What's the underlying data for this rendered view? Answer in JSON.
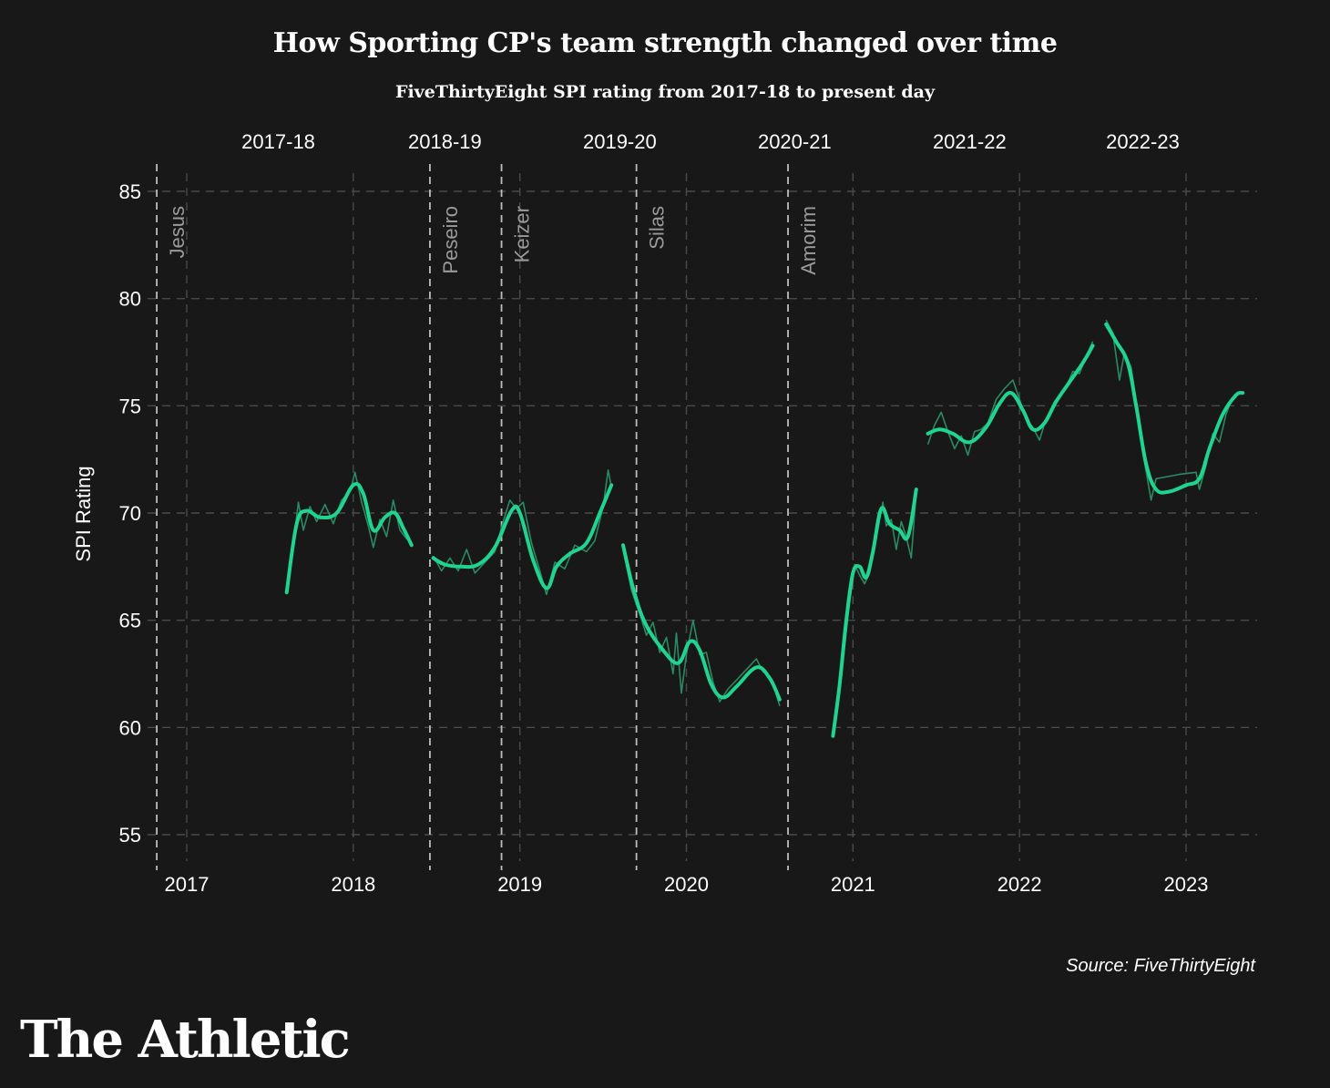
{
  "header": {
    "title": "How Sporting CP's team strength changed over time",
    "subtitle": "FiveThirtyEight SPI rating from 2017-18 to present day"
  },
  "footer": {
    "source": "Source: FiveThirtyEight",
    "logo": "The Athletic"
  },
  "colors": {
    "background": "#181818",
    "line": "#1ed490",
    "raw_line": "#2a8a63",
    "grid": "#4a4a4a",
    "manager_line": "#bdbdbd",
    "manager_label": "#9a9a9a"
  },
  "chart_data": {
    "type": "line",
    "title": "How Sporting CP's team strength changed over time",
    "subtitle": "FiveThirtyEight SPI rating from 2017-18 to present day",
    "xlabel": "",
    "ylabel": "SPI Rating",
    "ylim": [
      54,
      86
    ],
    "xlim": [
      2016.8,
      2023.45
    ],
    "y_ticks": [
      55,
      60,
      65,
      70,
      75,
      80,
      85
    ],
    "x_ticks": [
      {
        "value": 2017.0,
        "label": "2017"
      },
      {
        "value": 2018.0,
        "label": "2018"
      },
      {
        "value": 2019.0,
        "label": "2019"
      },
      {
        "value": 2020.0,
        "label": "2020"
      },
      {
        "value": 2021.0,
        "label": "2021"
      },
      {
        "value": 2022.0,
        "label": "2022"
      },
      {
        "value": 2023.0,
        "label": "2023"
      }
    ],
    "seasons": [
      {
        "label": "2017-18",
        "x": 2017.55
      },
      {
        "label": "2018-19",
        "x": 2018.55
      },
      {
        "label": "2019-20",
        "x": 2019.6
      },
      {
        "label": "2020-21",
        "x": 2020.65
      },
      {
        "label": "2021-22",
        "x": 2021.7
      },
      {
        "label": "2022-23",
        "x": 2022.74
      }
    ],
    "managers": [
      {
        "name": "Jesus",
        "x": 2016.82
      },
      {
        "name": "Peseiro",
        "x": 2018.46
      },
      {
        "name": "Keizer",
        "x": 2018.89
      },
      {
        "name": "Silas",
        "x": 2019.7
      },
      {
        "name": "Amorim",
        "x": 2020.61
      }
    ],
    "grid": true,
    "series": [
      {
        "season": "2017-18",
        "smoothed": [
          [
            2017.6,
            66.3
          ],
          [
            2017.66,
            69.5
          ],
          [
            2017.72,
            70.1
          ],
          [
            2017.8,
            69.8
          ],
          [
            2017.9,
            70.0
          ],
          [
            2018.0,
            71.3
          ],
          [
            2018.06,
            70.9
          ],
          [
            2018.12,
            69.2
          ],
          [
            2018.19,
            69.8
          ],
          [
            2018.25,
            70.0
          ],
          [
            2018.3,
            69.3
          ],
          [
            2018.35,
            68.5
          ]
        ],
        "raw": [
          [
            2017.6,
            66.5
          ],
          [
            2017.64,
            68.5
          ],
          [
            2017.67,
            70.5
          ],
          [
            2017.7,
            69.2
          ],
          [
            2017.74,
            70.3
          ],
          [
            2017.78,
            69.6
          ],
          [
            2017.83,
            70.4
          ],
          [
            2017.88,
            69.5
          ],
          [
            2017.93,
            70.6
          ],
          [
            2017.98,
            71.0
          ],
          [
            2018.01,
            71.9
          ],
          [
            2018.05,
            70.5
          ],
          [
            2018.09,
            69.4
          ],
          [
            2018.12,
            68.4
          ],
          [
            2018.16,
            69.7
          ],
          [
            2018.2,
            68.9
          ],
          [
            2018.24,
            70.6
          ],
          [
            2018.28,
            69.2
          ],
          [
            2018.32,
            68.8
          ],
          [
            2018.35,
            68.6
          ]
        ]
      },
      {
        "season": "2018-19",
        "smoothed": [
          [
            2018.48,
            67.9
          ],
          [
            2018.55,
            67.6
          ],
          [
            2018.65,
            67.5
          ],
          [
            2018.75,
            67.6
          ],
          [
            2018.85,
            68.4
          ],
          [
            2018.95,
            70.1
          ],
          [
            2019.0,
            70.0
          ],
          [
            2019.08,
            67.8
          ],
          [
            2019.16,
            66.5
          ],
          [
            2019.22,
            67.5
          ],
          [
            2019.3,
            68.1
          ],
          [
            2019.4,
            68.6
          ],
          [
            2019.48,
            70.0
          ],
          [
            2019.55,
            71.3
          ]
        ],
        "raw": [
          [
            2018.48,
            68.0
          ],
          [
            2018.53,
            67.3
          ],
          [
            2018.58,
            67.9
          ],
          [
            2018.63,
            67.3
          ],
          [
            2018.68,
            68.3
          ],
          [
            2018.73,
            67.2
          ],
          [
            2018.79,
            67.7
          ],
          [
            2018.85,
            68.2
          ],
          [
            2018.9,
            69.6
          ],
          [
            2018.94,
            70.6
          ],
          [
            2018.98,
            70.2
          ],
          [
            2019.02,
            70.5
          ],
          [
            2019.07,
            68.6
          ],
          [
            2019.12,
            67.3
          ],
          [
            2019.16,
            66.2
          ],
          [
            2019.21,
            67.7
          ],
          [
            2019.27,
            67.4
          ],
          [
            2019.33,
            68.5
          ],
          [
            2019.4,
            68.2
          ],
          [
            2019.45,
            68.7
          ],
          [
            2019.5,
            70.3
          ],
          [
            2019.53,
            72.0
          ],
          [
            2019.55,
            71.2
          ]
        ]
      },
      {
        "season": "2019-20",
        "smoothed": [
          [
            2019.62,
            68.5
          ],
          [
            2019.68,
            66.5
          ],
          [
            2019.75,
            64.9
          ],
          [
            2019.85,
            63.7
          ],
          [
            2019.95,
            63.0
          ],
          [
            2020.02,
            64.0
          ],
          [
            2020.08,
            63.6
          ],
          [
            2020.15,
            62.0
          ],
          [
            2020.22,
            61.4
          ],
          [
            2020.3,
            61.9
          ],
          [
            2020.42,
            62.8
          ],
          [
            2020.5,
            62.3
          ],
          [
            2020.56,
            61.3
          ]
        ],
        "raw": [
          [
            2019.62,
            68.3
          ],
          [
            2019.67,
            66.4
          ],
          [
            2019.72,
            65.3
          ],
          [
            2019.76,
            64.3
          ],
          [
            2019.8,
            64.9
          ],
          [
            2019.84,
            63.5
          ],
          [
            2019.88,
            64.2
          ],
          [
            2019.92,
            62.5
          ],
          [
            2019.94,
            64.4
          ],
          [
            2019.97,
            61.6
          ],
          [
            2020.0,
            63.4
          ],
          [
            2020.04,
            65.0
          ],
          [
            2020.08,
            63.4
          ],
          [
            2020.12,
            63.5
          ],
          [
            2020.16,
            62.1
          ],
          [
            2020.2,
            61.2
          ],
          [
            2020.25,
            61.8
          ],
          [
            2020.3,
            62.2
          ],
          [
            2020.42,
            63.2
          ],
          [
            2020.46,
            62.6
          ],
          [
            2020.5,
            62.4
          ],
          [
            2020.53,
            61.8
          ],
          [
            2020.56,
            61.0
          ]
        ]
      },
      {
        "season": "2020-21",
        "smoothed": [
          [
            2020.88,
            59.6
          ],
          [
            2020.92,
            62.0
          ],
          [
            2020.96,
            65.0
          ],
          [
            2021.0,
            67.2
          ],
          [
            2021.04,
            67.5
          ],
          [
            2021.08,
            67.0
          ],
          [
            2021.12,
            68.2
          ],
          [
            2021.17,
            70.2
          ],
          [
            2021.22,
            69.5
          ],
          [
            2021.28,
            69.2
          ],
          [
            2021.33,
            68.9
          ],
          [
            2021.38,
            71.1
          ]
        ],
        "raw": [
          [
            2020.88,
            59.8
          ],
          [
            2020.93,
            62.3
          ],
          [
            2020.97,
            65.2
          ],
          [
            2021.01,
            67.6
          ],
          [
            2021.04,
            67.1
          ],
          [
            2021.07,
            66.7
          ],
          [
            2021.1,
            67.2
          ],
          [
            2021.13,
            68.4
          ],
          [
            2021.16,
            69.7
          ],
          [
            2021.18,
            70.5
          ],
          [
            2021.2,
            69.4
          ],
          [
            2021.23,
            69.7
          ],
          [
            2021.26,
            68.3
          ],
          [
            2021.29,
            69.6
          ],
          [
            2021.32,
            68.9
          ],
          [
            2021.35,
            67.9
          ],
          [
            2021.38,
            71.0
          ]
        ]
      },
      {
        "season": "2021-22",
        "smoothed": [
          [
            2021.45,
            73.7
          ],
          [
            2021.52,
            73.9
          ],
          [
            2021.6,
            73.7
          ],
          [
            2021.7,
            73.3
          ],
          [
            2021.8,
            74.0
          ],
          [
            2021.88,
            75.1
          ],
          [
            2021.95,
            75.6
          ],
          [
            2022.02,
            74.8
          ],
          [
            2022.08,
            73.9
          ],
          [
            2022.15,
            74.2
          ],
          [
            2022.22,
            75.2
          ],
          [
            2022.3,
            76.1
          ],
          [
            2022.38,
            77.0
          ],
          [
            2022.44,
            77.8
          ]
        ],
        "raw": [
          [
            2021.45,
            73.2
          ],
          [
            2021.49,
            74.1
          ],
          [
            2021.53,
            74.7
          ],
          [
            2021.57,
            73.8
          ],
          [
            2021.61,
            73.0
          ],
          [
            2021.65,
            73.6
          ],
          [
            2021.69,
            72.7
          ],
          [
            2021.73,
            73.8
          ],
          [
            2021.77,
            73.9
          ],
          [
            2021.81,
            74.2
          ],
          [
            2021.86,
            75.3
          ],
          [
            2021.91,
            75.8
          ],
          [
            2021.96,
            76.2
          ],
          [
            2022.0,
            75.3
          ],
          [
            2022.04,
            74.4
          ],
          [
            2022.08,
            74.0
          ],
          [
            2022.12,
            73.4
          ],
          [
            2022.16,
            74.4
          ],
          [
            2022.21,
            75.2
          ],
          [
            2022.27,
            75.7
          ],
          [
            2022.32,
            76.6
          ],
          [
            2022.36,
            76.5
          ],
          [
            2022.4,
            77.3
          ],
          [
            2022.44,
            78.0
          ]
        ]
      },
      {
        "season": "2022-23",
        "smoothed": [
          [
            2022.52,
            78.8
          ],
          [
            2022.58,
            78.0
          ],
          [
            2022.65,
            77.0
          ],
          [
            2022.7,
            75.0
          ],
          [
            2022.76,
            72.3
          ],
          [
            2022.82,
            71.1
          ],
          [
            2022.9,
            71.0
          ],
          [
            2023.0,
            71.3
          ],
          [
            2023.08,
            71.6
          ],
          [
            2023.14,
            73.0
          ],
          [
            2023.22,
            74.6
          ],
          [
            2023.3,
            75.5
          ],
          [
            2023.34,
            75.6
          ]
        ],
        "raw": [
          [
            2022.52,
            79.0
          ],
          [
            2022.56,
            78.4
          ],
          [
            2022.6,
            76.2
          ],
          [
            2022.63,
            77.5
          ],
          [
            2022.67,
            76.8
          ],
          [
            2022.71,
            74.7
          ],
          [
            2022.75,
            72.4
          ],
          [
            2022.79,
            70.6
          ],
          [
            2022.82,
            71.6
          ],
          [
            2022.96,
            71.8
          ],
          [
            2023.06,
            71.9
          ],
          [
            2023.08,
            71.1
          ],
          [
            2023.12,
            72.2
          ],
          [
            2023.16,
            73.7
          ],
          [
            2023.2,
            73.3
          ],
          [
            2023.24,
            74.6
          ],
          [
            2023.28,
            75.4
          ],
          [
            2023.33,
            75.6
          ]
        ]
      }
    ]
  }
}
